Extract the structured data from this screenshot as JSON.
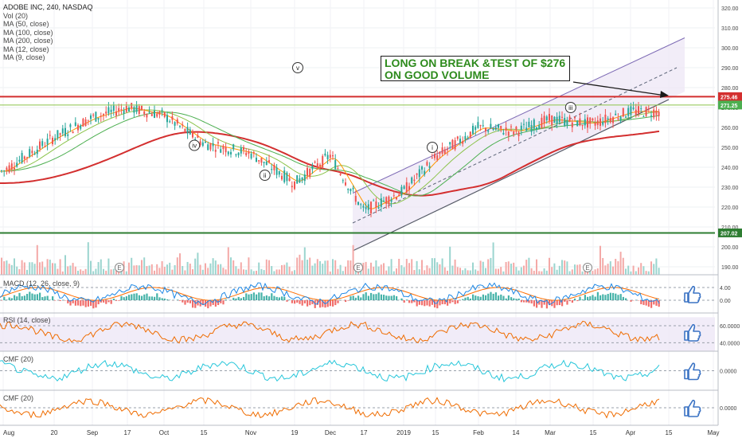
{
  "header": {
    "title": "ADOBE INC, 240, NASDAQ",
    "studies": [
      "Vol (20)",
      "MA (50, close)",
      "MA (100, close)",
      "MA (200, close)",
      "MA (12, close)",
      "MA (9, close)"
    ]
  },
  "annotation": {
    "line1": "LONG ON BREAK &TEST OF $276",
    "line2": "ON GOOD VOLUME"
  },
  "colors": {
    "up": "#26a69a",
    "down": "#ef5350",
    "resistance": "#d32f2f",
    "support": "#2e7d32",
    "ma_slow": "#d32f2f",
    "ma_mid": "#4caf50",
    "ma_fast": "#ff9800",
    "macd": "#1e88e5",
    "signal": "#ff6d00",
    "rsi": "#ef6c00",
    "cmf1": "#26c6da",
    "cmf2": "#ef6c00",
    "channel_fill": "#ede7f6",
    "thumb": "#3b73c4"
  },
  "chart_data": {
    "type": "line",
    "title": "ADOBE INC, 240, NASDAQ",
    "price_axis": {
      "ticks": [
        190,
        200,
        210,
        220,
        230,
        240,
        250,
        260,
        270,
        280,
        290,
        300,
        310,
        320
      ],
      "tick_labels": [
        "190.00",
        "200.00",
        "210.00",
        "220.00",
        "230.00",
        "240.00",
        "250.00",
        "260.00",
        "270.00",
        "280.00",
        "290.00",
        "300.00",
        "310.00",
        "320.00"
      ],
      "range": [
        186,
        324
      ]
    },
    "time_axis": {
      "labels": [
        "Aug",
        "20",
        "Sep",
        "17",
        "Oct",
        "15",
        "Nov",
        "19",
        "Dec",
        "17",
        "2019",
        "15",
        "Feb",
        "14",
        "Mar",
        "15",
        "Apr",
        "15",
        "May"
      ]
    },
    "price_series": [
      [
        "Aug",
        238
      ],
      [
        "20",
        255
      ],
      [
        "Sep",
        265
      ],
      [
        "17",
        270
      ],
      [
        "Oct",
        266
      ],
      [
        "15",
        252
      ],
      [
        "Nov",
        247
      ],
      [
        "19",
        232
      ],
      [
        "Dec",
        246
      ],
      [
        "17",
        218
      ],
      [
        "2019",
        228
      ],
      [
        "15",
        245
      ],
      [
        "Feb",
        260
      ],
      [
        "14",
        258
      ],
      [
        "Mar",
        264
      ],
      [
        "15",
        262
      ],
      [
        "Apr",
        268
      ]
    ],
    "horizontal_levels": [
      {
        "label": "275.46",
        "value": 275.46
      },
      {
        "label": "207.02",
        "value": 207.02
      },
      {
        "label": "271.25",
        "value": 271.25
      }
    ],
    "elliott_waves": [
      {
        "label": "i",
        "month": "2019",
        "offset": 0.9,
        "value": 250
      },
      {
        "label": "ii",
        "month": "15",
        "offset": 1.3,
        "value": 236
      },
      {
        "label": "iii",
        "month": "14",
        "offset": 1.6,
        "value": 270
      },
      {
        "label": "iv",
        "month": "15",
        "offset": -0.2,
        "value": 251
      },
      {
        "label": "v",
        "month": "15",
        "offset": 2.0,
        "value": 290
      }
    ],
    "earnings_markers": [
      "E",
      "E",
      "E"
    ],
    "indicators": [
      {
        "name": "MACD (12, 26, close, 9)",
        "ticks": [
          4.0,
          0.0
        ],
        "tick_labels": [
          "4.00",
          "0.00"
        ]
      },
      {
        "name": "RSI (14, close)",
        "ticks": [
          60,
          40
        ],
        "tick_labels": [
          "60.0000",
          "40.0000"
        ]
      },
      {
        "name": "CMF (20)",
        "ticks": [
          0
        ],
        "tick_labels": [
          "0.0000"
        ]
      },
      {
        "name": "CMF (20)",
        "ticks": [
          0
        ],
        "tick_labels": [
          "0.0000"
        ]
      }
    ]
  }
}
